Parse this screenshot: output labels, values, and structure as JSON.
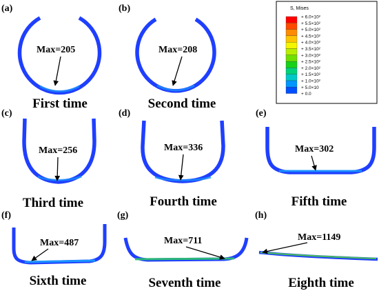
{
  "panels": [
    {
      "id": "a",
      "label": "(a)",
      "max_label": "Max=205",
      "caption": "First time"
    },
    {
      "id": "b",
      "label": "(b)",
      "max_label": "Max=208",
      "caption": "Second time"
    },
    {
      "id": "c",
      "label": "(c)",
      "max_label": "Max=256",
      "caption": "Third time"
    },
    {
      "id": "d",
      "label": "(d)",
      "max_label": "Max=336",
      "caption": "Fourth time"
    },
    {
      "id": "e",
      "label": "(e)",
      "max_label": "Max=302",
      "caption": "Fifth time"
    },
    {
      "id": "f",
      "label": "(f)",
      "max_label": "Max=487",
      "caption": "Sixth time"
    },
    {
      "id": "g",
      "label": "(g)",
      "max_label": "Max=711",
      "caption": "Seventh time"
    },
    {
      "id": "h",
      "label": "(h)",
      "max_label": "Max=1149",
      "caption": "Eighth time"
    }
  ],
  "legend": {
    "title": "S, Mises",
    "entries": [
      {
        "label": "+ 6.0×10²",
        "color": "#ff0000"
      },
      {
        "label": "+ 5.5×10²",
        "color": "#ff4a00"
      },
      {
        "label": "+ 5.0×10²",
        "color": "#ff8c00"
      },
      {
        "label": "+ 4.5×10²",
        "color": "#ffc400"
      },
      {
        "label": "+ 4.0×10²",
        "color": "#f5f500"
      },
      {
        "label": "+ 3.5×10²",
        "color": "#b8ef00"
      },
      {
        "label": "+ 3.0×10²",
        "color": "#6fe000"
      },
      {
        "label": "+ 2.5×10²",
        "color": "#16d216"
      },
      {
        "label": "+ 2.0×10²",
        "color": "#00d27a"
      },
      {
        "label": "+ 1.5×10²",
        "color": "#00c8c8"
      },
      {
        "label": "+ 1.0×10²",
        "color": "#0096ff"
      },
      {
        "label": "+ 5.0×10",
        "color": "#0050ff"
      },
      {
        "label": "+ 0.0",
        "color": "#0000ff"
      }
    ]
  }
}
